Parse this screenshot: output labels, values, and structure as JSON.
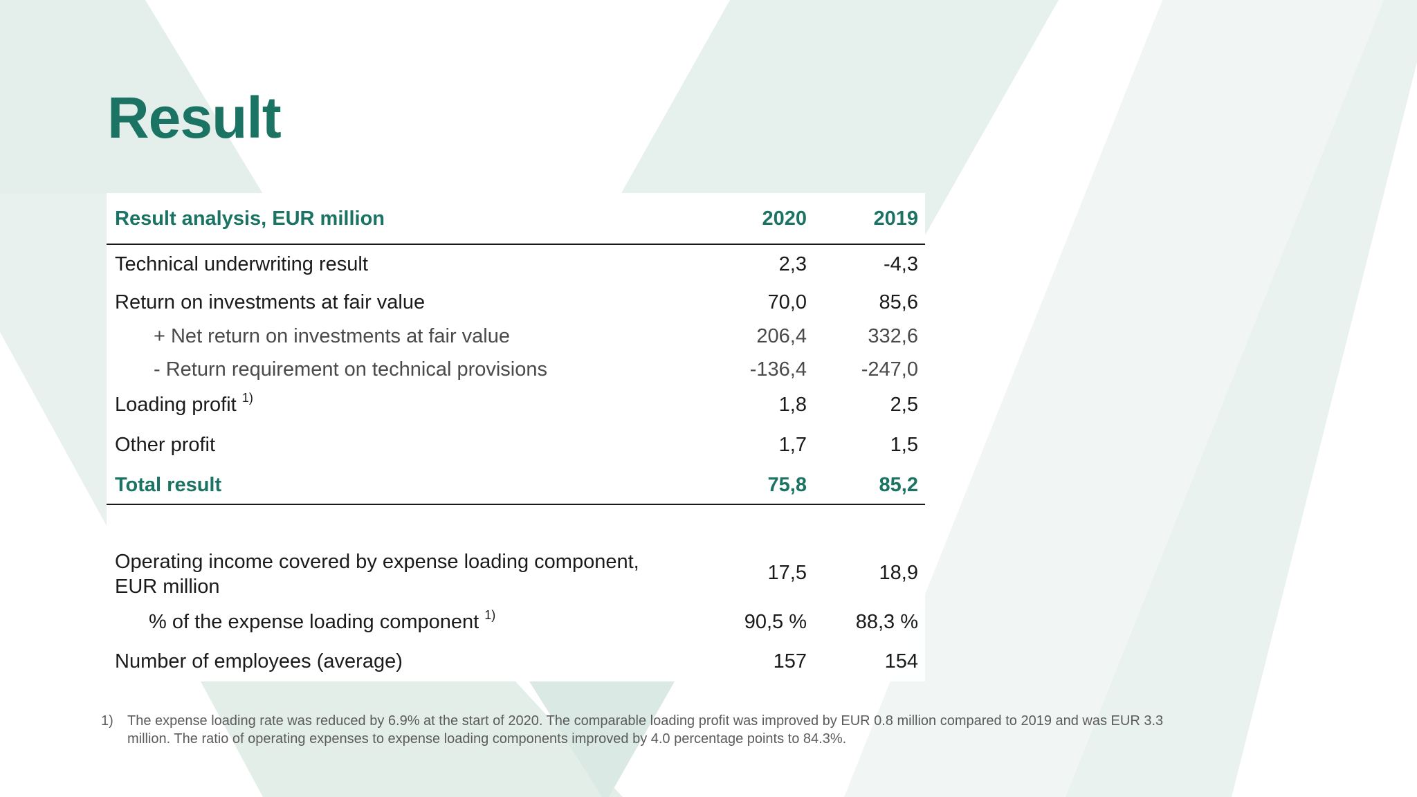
{
  "slide": {
    "title": "Result",
    "colors": {
      "accent": "#1b7363",
      "text": "#1a1a1a",
      "subtle": "#4a4a4a",
      "background_shape": "#e6f0ec"
    }
  },
  "table": {
    "header": {
      "label": "Result analysis, EUR million",
      "col1": "2020",
      "col2": "2019"
    },
    "rows": [
      {
        "label": "Technical underwriting result",
        "v2020": "2,3",
        "v2019": "-4,3"
      },
      {
        "label": "Return on investments at fair value",
        "v2020": "70,0",
        "v2019": "85,6"
      },
      {
        "label": "+ Net return on investments at fair value",
        "v2020": "206,4",
        "v2019": "332,6"
      },
      {
        "label": "- Return requirement on technical provisions",
        "v2020": "-136,4",
        "v2019": "-247,0"
      },
      {
        "label": "Loading profit",
        "note": "1)",
        "v2020": "1,8",
        "v2019": "2,5"
      },
      {
        "label": "Other profit",
        "v2020": "1,7",
        "v2019": "1,5"
      }
    ],
    "total": {
      "label": "Total result",
      "v2020": "75,8",
      "v2019": "85,2"
    }
  },
  "operating": {
    "rows": [
      {
        "label_line1": "Operating income covered by expense loading component,",
        "label_line2": "EUR million",
        "v2020": "17,5",
        "v2019": "18,9"
      },
      {
        "label": "% of the expense loading component",
        "note": "1)",
        "v2020": "90,5 %",
        "v2019": "88,3 %"
      },
      {
        "label": "Number of employees (average)",
        "v2020": "157",
        "v2019": "154"
      }
    ]
  },
  "footnote": {
    "number": "1)",
    "text": "The expense loading rate was reduced by 6.9% at the start of 2020. The comparable loading profit was improved by EUR 0.8 million compared to 2019 and was EUR 3.3 million. The ratio of operating expenses to expense loading components improved by 4.0 percentage points to 84.3%."
  }
}
